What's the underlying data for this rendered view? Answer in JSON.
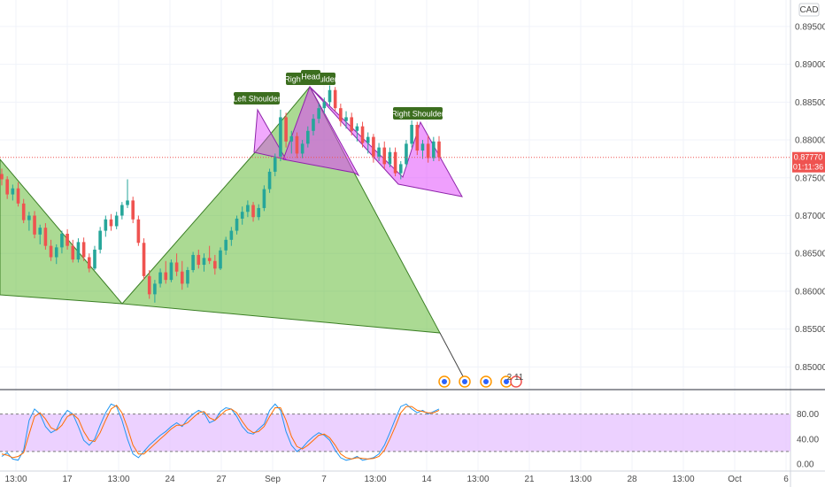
{
  "currency_label": "CAD",
  "colors": {
    "up": "#26a69a",
    "down": "#ef5350",
    "pattern_pink": "#e040fb",
    "pattern_green": "#66bb3a",
    "label_bg": "#3c6e1f",
    "stoch_k": "#2196f3",
    "stoch_d": "#ff6d00",
    "stoch_band": "#e7c6ff",
    "price_tag": "#ef5350",
    "grid": "#f0f3fa"
  },
  "chart_data": {
    "type": "candlestick",
    "title": "",
    "price_axis": {
      "ticks": [
        "0.89500",
        "0.89000",
        "0.88500",
        "0.88000",
        "0.87500",
        "0.87000",
        "0.86500",
        "0.86000",
        "0.85500",
        "0.85000"
      ],
      "ylim": [
        0.847,
        0.8985
      ]
    },
    "time_axis": {
      "ticks": [
        "13:00",
        "17",
        "13:00",
        "24",
        "27",
        "Sep",
        "7",
        "13:00",
        "14",
        "13:00",
        "21",
        "13:00",
        "28",
        "13:00",
        "Oct",
        "6"
      ]
    },
    "last_price": "0.87770",
    "countdown": "01:11:36",
    "annotations": [
      "Left Shoulder",
      "Head",
      "Right Shoulder",
      "Right Shoulder"
    ],
    "event_badge": "2 11",
    "candles": [
      [
        0.8755,
        0.8762,
        0.874,
        0.8748
      ],
      [
        0.8748,
        0.8752,
        0.8722,
        0.8728
      ],
      [
        0.8728,
        0.8741,
        0.872,
        0.8736
      ],
      [
        0.8736,
        0.8744,
        0.8712,
        0.8716
      ],
      [
        0.8716,
        0.8722,
        0.869,
        0.8694
      ],
      [
        0.8694,
        0.8705,
        0.868,
        0.87
      ],
      [
        0.87,
        0.8706,
        0.867,
        0.8675
      ],
      [
        0.8675,
        0.8688,
        0.8662,
        0.8684
      ],
      [
        0.8684,
        0.869,
        0.8655,
        0.866
      ],
      [
        0.866,
        0.8668,
        0.864,
        0.8645
      ],
      [
        0.8645,
        0.8662,
        0.8636,
        0.8658
      ],
      [
        0.8658,
        0.868,
        0.865,
        0.8676
      ],
      [
        0.8676,
        0.8682,
        0.8655,
        0.866
      ],
      [
        0.866,
        0.8668,
        0.8638,
        0.8642
      ],
      [
        0.8642,
        0.867,
        0.8638,
        0.8665
      ],
      [
        0.8665,
        0.8671,
        0.864,
        0.8645
      ],
      [
        0.8645,
        0.865,
        0.8625,
        0.863
      ],
      [
        0.863,
        0.866,
        0.8628,
        0.8655
      ],
      [
        0.8655,
        0.8685,
        0.865,
        0.868
      ],
      [
        0.868,
        0.87,
        0.8672,
        0.8695
      ],
      [
        0.8695,
        0.8702,
        0.868,
        0.8686
      ],
      [
        0.8686,
        0.8705,
        0.8682,
        0.87
      ],
      [
        0.87,
        0.8718,
        0.8695,
        0.8714
      ],
      [
        0.8714,
        0.8748,
        0.871,
        0.872
      ],
      [
        0.872,
        0.8725,
        0.869,
        0.8695
      ],
      [
        0.8695,
        0.87,
        0.866,
        0.8664
      ],
      [
        0.8664,
        0.867,
        0.8615,
        0.862
      ],
      [
        0.862,
        0.8628,
        0.859,
        0.8596
      ],
      [
        0.8596,
        0.8615,
        0.8585,
        0.861
      ],
      [
        0.861,
        0.863,
        0.8605,
        0.8625
      ],
      [
        0.8625,
        0.864,
        0.861,
        0.8615
      ],
      [
        0.8615,
        0.8642,
        0.8612,
        0.8638
      ],
      [
        0.8638,
        0.865,
        0.862,
        0.8626
      ],
      [
        0.8626,
        0.864,
        0.8602,
        0.861
      ],
      [
        0.861,
        0.8632,
        0.8605,
        0.8628
      ],
      [
        0.8628,
        0.8652,
        0.8625,
        0.8648
      ],
      [
        0.8648,
        0.8655,
        0.863,
        0.8635
      ],
      [
        0.8635,
        0.865,
        0.8626,
        0.8644
      ],
      [
        0.8644,
        0.866,
        0.8636,
        0.864
      ],
      [
        0.864,
        0.8648,
        0.8622,
        0.863
      ],
      [
        0.863,
        0.8658,
        0.8628,
        0.8654
      ],
      [
        0.8654,
        0.8672,
        0.8648,
        0.8668
      ],
      [
        0.8668,
        0.8685,
        0.866,
        0.868
      ],
      [
        0.868,
        0.87,
        0.8675,
        0.8696
      ],
      [
        0.8696,
        0.8712,
        0.8688,
        0.8705
      ],
      [
        0.8705,
        0.872,
        0.8698,
        0.8714
      ],
      [
        0.8714,
        0.8718,
        0.8692,
        0.8698
      ],
      [
        0.8698,
        0.8715,
        0.8694,
        0.871
      ],
      [
        0.871,
        0.874,
        0.8706,
        0.8735
      ],
      [
        0.8735,
        0.8762,
        0.873,
        0.8758
      ],
      [
        0.8758,
        0.8782,
        0.8752,
        0.8778
      ],
      [
        0.8778,
        0.884,
        0.8772,
        0.883
      ],
      [
        0.883,
        0.8836,
        0.879,
        0.8798
      ],
      [
        0.8798,
        0.8812,
        0.8782,
        0.8805
      ],
      [
        0.8805,
        0.881,
        0.8776,
        0.8782
      ],
      [
        0.8782,
        0.88,
        0.8776,
        0.8795
      ],
      [
        0.8795,
        0.8818,
        0.879,
        0.8812
      ],
      [
        0.8812,
        0.8834,
        0.8806,
        0.8828
      ],
      [
        0.8828,
        0.8848,
        0.8822,
        0.8842
      ],
      [
        0.8842,
        0.8856,
        0.8835,
        0.885
      ],
      [
        0.885,
        0.8872,
        0.8845,
        0.8866
      ],
      [
        0.8866,
        0.887,
        0.8838,
        0.8842
      ],
      [
        0.8842,
        0.8848,
        0.8818,
        0.8825
      ],
      [
        0.8825,
        0.8838,
        0.8815,
        0.883
      ],
      [
        0.883,
        0.8836,
        0.8806,
        0.8812
      ],
      [
        0.8812,
        0.8822,
        0.8798,
        0.8818
      ],
      [
        0.8818,
        0.8824,
        0.879,
        0.8796
      ],
      [
        0.8796,
        0.881,
        0.8782,
        0.8804
      ],
      [
        0.8804,
        0.8808,
        0.877,
        0.8778
      ],
      [
        0.8778,
        0.8796,
        0.8772,
        0.879
      ],
      [
        0.879,
        0.8798,
        0.8762,
        0.8768
      ],
      [
        0.8768,
        0.879,
        0.8764,
        0.8784
      ],
      [
        0.8784,
        0.879,
        0.8752,
        0.8756
      ],
      [
        0.8756,
        0.8772,
        0.8748,
        0.8768
      ],
      [
        0.8768,
        0.88,
        0.8764,
        0.8795
      ],
      [
        0.8795,
        0.8826,
        0.879,
        0.882
      ],
      [
        0.882,
        0.8824,
        0.878,
        0.8786
      ],
      [
        0.8786,
        0.88,
        0.8775,
        0.8795
      ],
      [
        0.8795,
        0.8806,
        0.877,
        0.8776
      ],
      [
        0.8776,
        0.8804,
        0.8772,
        0.8798
      ],
      [
        0.8798,
        0.8805,
        0.8772,
        0.8777
      ]
    ],
    "stochastic": {
      "ticks": [
        "80.00",
        "40.00",
        "0.00"
      ],
      "band": [
        20,
        80
      ],
      "k": [
        12,
        18,
        8,
        6,
        22,
        70,
        88,
        80,
        60,
        50,
        55,
        74,
        86,
        80,
        60,
        38,
        30,
        40,
        62,
        82,
        96,
        92,
        70,
        40,
        16,
        10,
        20,
        30,
        38,
        46,
        52,
        60,
        66,
        60,
        72,
        80,
        86,
        82,
        66,
        70,
        84,
        90,
        88,
        76,
        60,
        50,
        48,
        56,
        64,
        86,
        96,
        86,
        52,
        30,
        20,
        26,
        36,
        44,
        50,
        46,
        38,
        22,
        10,
        6,
        8,
        12,
        6,
        8,
        10,
        16,
        30,
        50,
        72,
        92,
        96,
        88,
        82,
        86,
        80,
        84,
        88
      ],
      "d": [
        16,
        14,
        10,
        12,
        18,
        48,
        76,
        82,
        72,
        58,
        54,
        62,
        76,
        80,
        72,
        52,
        38,
        36,
        50,
        70,
        88,
        94,
        82,
        58,
        30,
        16,
        16,
        24,
        32,
        40,
        48,
        56,
        62,
        62,
        66,
        74,
        82,
        84,
        74,
        70,
        78,
        86,
        88,
        82,
        68,
        56,
        50,
        52,
        60,
        76,
        90,
        90,
        70,
        44,
        28,
        24,
        30,
        38,
        46,
        48,
        42,
        30,
        16,
        10,
        8,
        10,
        9,
        8,
        9,
        12,
        22,
        40,
        60,
        82,
        92,
        92,
        86,
        84,
        82,
        82,
        86
      ]
    }
  }
}
